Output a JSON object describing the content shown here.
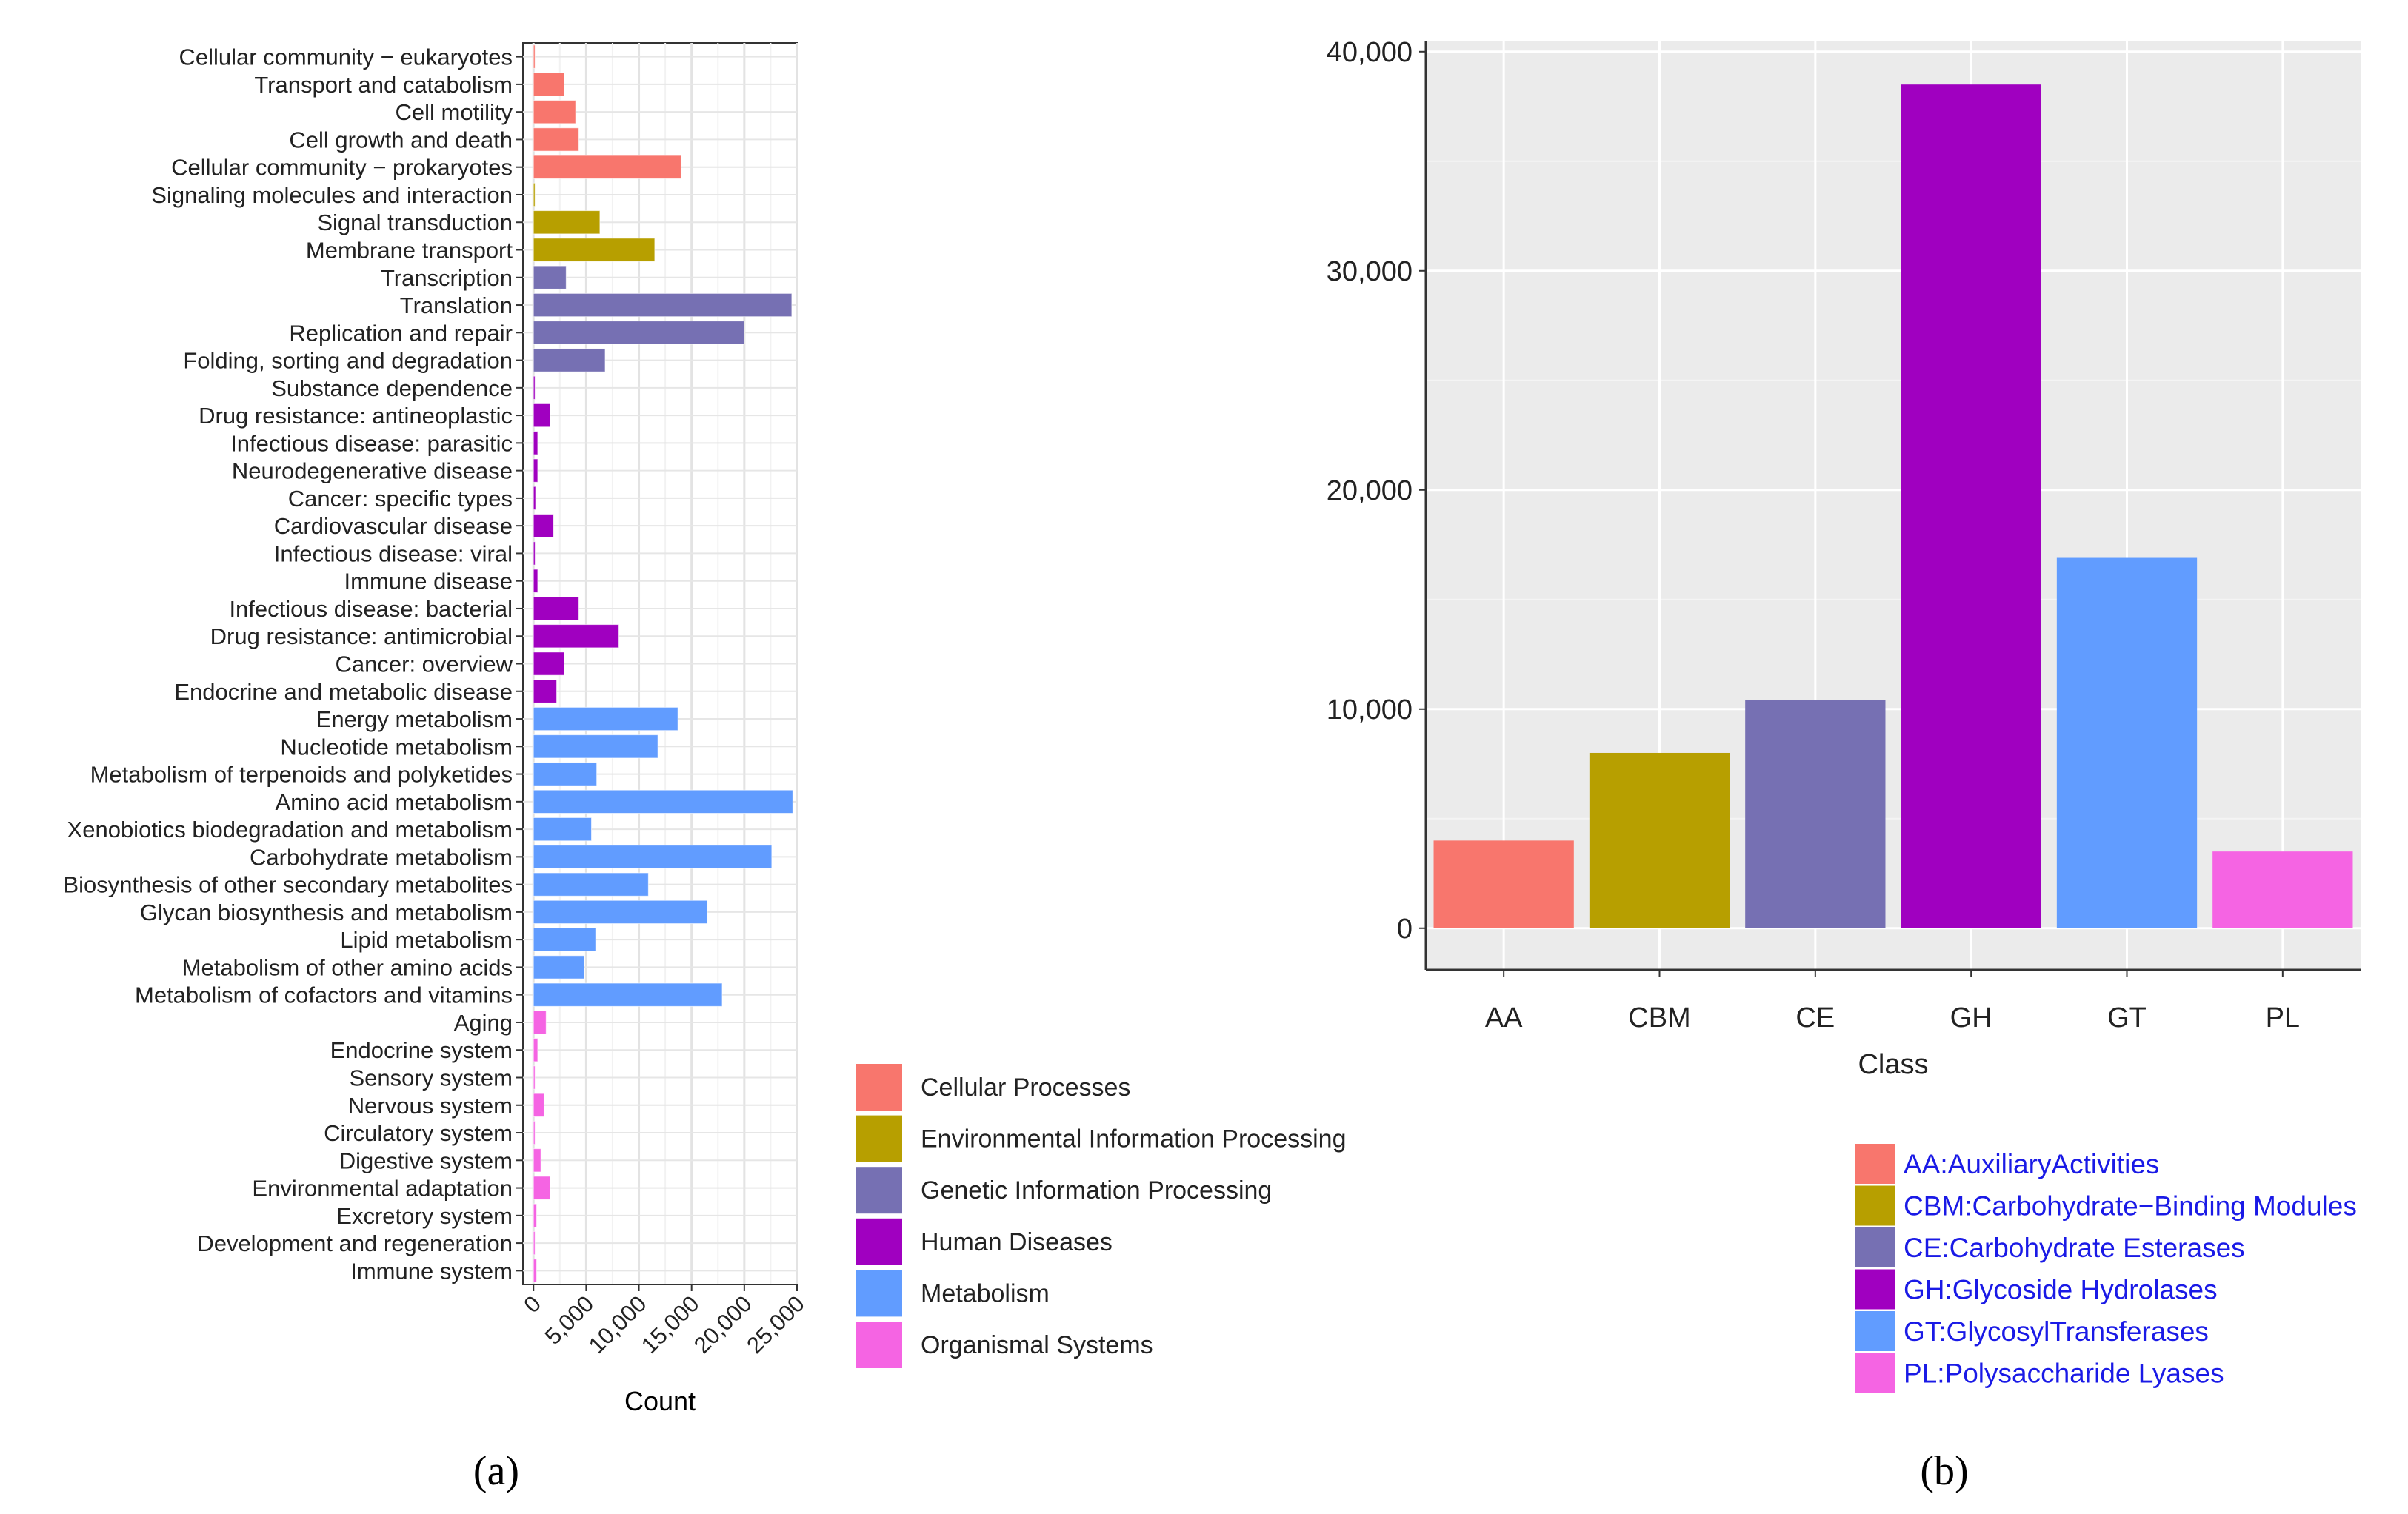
{
  "figure": {
    "caption_a": "(a)",
    "caption_b": "(b)"
  },
  "chart_data": [
    {
      "id": "a",
      "type": "bar",
      "orientation": "horizontal",
      "xlabel": "Count",
      "ylabel": "",
      "xlim": [
        -1000,
        25000
      ],
      "xticks": [
        0,
        5000,
        10000,
        15000,
        20000,
        25000
      ],
      "xtick_labels": [
        "0",
        "5,000",
        "10,000",
        "15,000",
        "20,000",
        "25,000"
      ],
      "grid": true,
      "legend_position": "bottom-right",
      "groups": [
        {
          "name": "Cellular Processes",
          "color": "#F8766D"
        },
        {
          "name": "Environmental Information Processing",
          "color": "#B79F00"
        },
        {
          "name": "Genetic Information Processing",
          "color": "#7670B3"
        },
        {
          "name": "Human Diseases",
          "color": "#A000C0"
        },
        {
          "name": "Metabolism",
          "color": "#619CFF"
        },
        {
          "name": "Organismal Systems",
          "color": "#F564E3"
        }
      ],
      "categories": [
        "Cellular community − eukaryotes",
        "Transport and catabolism",
        "Cell motility",
        "Cell growth and death",
        "Cellular community − prokaryotes",
        "Signaling molecules and interaction",
        "Signal transduction",
        "Membrane transport",
        "Transcription",
        "Translation",
        "Replication and repair",
        "Folding, sorting and degradation",
        "Substance dependence",
        "Drug resistance: antineoplastic",
        "Infectious disease: parasitic",
        "Neurodegenerative disease",
        "Cancer: specific types",
        "Cardiovascular disease",
        "Infectious disease: viral",
        "Immune disease",
        "Infectious disease: bacterial",
        "Drug resistance: antimicrobial",
        "Cancer: overview",
        "Endocrine and metabolic disease",
        "Energy metabolism",
        "Nucleotide metabolism",
        "Metabolism of terpenoids and polyketides",
        "Amino acid metabolism",
        "Xenobiotics biodegradation and metabolism",
        "Carbohydrate metabolism",
        "Biosynthesis of other secondary metabolites",
        "Glycan biosynthesis and metabolism",
        "Lipid metabolism",
        "Metabolism of other amino acids",
        "Metabolism of cofactors and vitamins",
        "Aging",
        "Endocrine system",
        "Sensory system",
        "Nervous system",
        "Circulatory system",
        "Digestive system",
        "Environmental adaptation",
        "Excretory system",
        "Development and regeneration",
        "Immune system"
      ],
      "values": [
        50,
        2900,
        4000,
        4300,
        14000,
        60,
        6300,
        11500,
        3100,
        24500,
        20000,
        6800,
        60,
        1600,
        400,
        400,
        200,
        1900,
        150,
        400,
        4300,
        8100,
        2900,
        2200,
        13700,
        11800,
        6000,
        24600,
        5500,
        22600,
        10900,
        16500,
        5900,
        4800,
        17900,
        1200,
        400,
        80,
        1000,
        100,
        700,
        1600,
        300,
        80,
        300
      ],
      "group_index": [
        0,
        0,
        0,
        0,
        0,
        1,
        1,
        1,
        2,
        2,
        2,
        2,
        3,
        3,
        3,
        3,
        3,
        3,
        3,
        3,
        3,
        3,
        3,
        3,
        4,
        4,
        4,
        4,
        4,
        4,
        4,
        4,
        4,
        4,
        4,
        5,
        5,
        5,
        5,
        5,
        5,
        5,
        5,
        5,
        5
      ]
    },
    {
      "id": "b",
      "type": "bar",
      "orientation": "vertical",
      "xlabel": "Class",
      "ylabel": "",
      "ylim": [
        -1900,
        40500
      ],
      "yticks": [
        0,
        10000,
        20000,
        30000,
        40000
      ],
      "ytick_labels": [
        "0",
        "10,000",
        "20,000",
        "30,000",
        "40,000"
      ],
      "grid": true,
      "legend_position": "bottom-right",
      "categories": [
        "AA",
        "CBM",
        "CE",
        "GH",
        "GT",
        "PL"
      ],
      "values": [
        4000,
        8000,
        10400,
        38500,
        16900,
        3500
      ],
      "colors": [
        "#F8766D",
        "#B79F00",
        "#7670B3",
        "#A000C0",
        "#619CFF",
        "#F564E3"
      ],
      "legend": [
        "AA:AuxiliaryActivities",
        "CBM:Carbohydrate−Binding Modules",
        "CE:Carbohydrate Esterases",
        "GH:Glycoside Hydrolases",
        "GT:GlycosylTransferases",
        "PL:Polysaccharide Lyases"
      ],
      "legend_text_color": "#1A1AE6"
    }
  ]
}
